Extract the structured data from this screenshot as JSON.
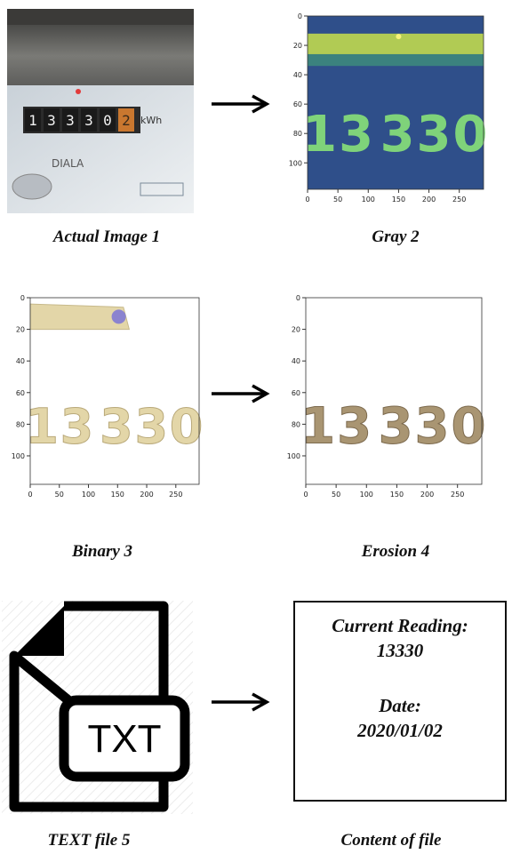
{
  "steps": [
    {
      "label": "Actual Image  1"
    },
    {
      "label": "Gray  2"
    },
    {
      "label": "Binary  3"
    },
    {
      "label": "Erosion  4"
    },
    {
      "label": "TEXT file  5"
    },
    {
      "label": "Content of file"
    }
  ],
  "meter_photo": {
    "digits": [
      "1",
      "3",
      "3",
      "3",
      "0",
      "2"
    ],
    "unit": "kWh",
    "plate_text": "DIALA",
    "colors": {
      "housing": "#6a6a68",
      "window": "#d8dde2",
      "counter": "#2b2b2b",
      "last_digit": "#c9772f"
    }
  },
  "plot_axes": {
    "x_ticks": [
      "0",
      "50",
      "100",
      "150",
      "200",
      "250"
    ],
    "y_ticks": [
      "0",
      "20",
      "40",
      "60",
      "80",
      "100"
    ]
  },
  "plot_digits": [
    "1",
    "3",
    "3",
    "3",
    "0"
  ],
  "colors": {
    "gray_background": "#2f4f8a",
    "gray_digit": "#7fd37a",
    "gray_band": "#c8e04a",
    "binary_digit": "#e3d6a8",
    "erosion_digit": "#a99572",
    "arrow": "#000000"
  },
  "text_file_icon": {
    "label": "TXT"
  },
  "file_content": {
    "reading_label": "Current Reading:",
    "reading_value": "13330",
    "date_label": "Date:",
    "date_value": "2020/01/02"
  }
}
